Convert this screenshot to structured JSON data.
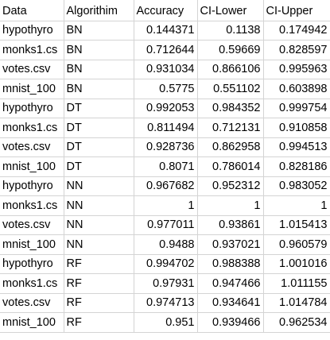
{
  "sheet": {
    "headers": [
      "Data",
      "Algorithim",
      "Accuracy",
      "CI-Lower",
      "CI-Upper"
    ],
    "rows": [
      {
        "data": "hypothyro",
        "algorithm": "BN",
        "accuracy": "0.144371",
        "ci_lower": "0.1138",
        "ci_upper": "0.174942"
      },
      {
        "data": "monks1.cs",
        "algorithm": "BN",
        "accuracy": "0.712644",
        "ci_lower": "0.59669",
        "ci_upper": "0.828597"
      },
      {
        "data": "votes.csv",
        "algorithm": "BN",
        "accuracy": "0.931034",
        "ci_lower": "0.866106",
        "ci_upper": "0.995963"
      },
      {
        "data": "mnist_100",
        "algorithm": "BN",
        "accuracy": "0.5775",
        "ci_lower": "0.551102",
        "ci_upper": "0.603898"
      },
      {
        "data": "hypothyro",
        "algorithm": "DT",
        "accuracy": "0.992053",
        "ci_lower": "0.984352",
        "ci_upper": "0.999754"
      },
      {
        "data": "monks1.cs",
        "algorithm": "DT",
        "accuracy": "0.811494",
        "ci_lower": "0.712131",
        "ci_upper": "0.910858"
      },
      {
        "data": "votes.csv",
        "algorithm": "DT",
        "accuracy": "0.928736",
        "ci_lower": "0.862958",
        "ci_upper": "0.994513"
      },
      {
        "data": "mnist_100",
        "algorithm": "DT",
        "accuracy": "0.8071",
        "ci_lower": "0.786014",
        "ci_upper": "0.828186"
      },
      {
        "data": "hypothyro",
        "algorithm": "NN",
        "accuracy": "0.967682",
        "ci_lower": "0.952312",
        "ci_upper": "0.983052"
      },
      {
        "data": "monks1.cs",
        "algorithm": "NN",
        "accuracy": "1",
        "ci_lower": "1",
        "ci_upper": "1"
      },
      {
        "data": "votes.csv",
        "algorithm": "NN",
        "accuracy": "0.977011",
        "ci_lower": "0.93861",
        "ci_upper": "1.015413"
      },
      {
        "data": "mnist_100",
        "algorithm": "NN",
        "accuracy": "0.9488",
        "ci_lower": "0.937021",
        "ci_upper": "0.960579"
      },
      {
        "data": "hypothyro",
        "algorithm": "RF",
        "accuracy": "0.994702",
        "ci_lower": "0.988388",
        "ci_upper": "1.001016"
      },
      {
        "data": "monks1.cs",
        "algorithm": "RF",
        "accuracy": "0.97931",
        "ci_lower": "0.947466",
        "ci_upper": "1.011155"
      },
      {
        "data": "votes.csv",
        "algorithm": "RF",
        "accuracy": "0.974713",
        "ci_lower": "0.934641",
        "ci_upper": "1.014784"
      },
      {
        "data": "mnist_100",
        "algorithm": "RF",
        "accuracy": "0.951",
        "ci_lower": "0.939466",
        "ci_upper": "0.962534"
      }
    ]
  }
}
